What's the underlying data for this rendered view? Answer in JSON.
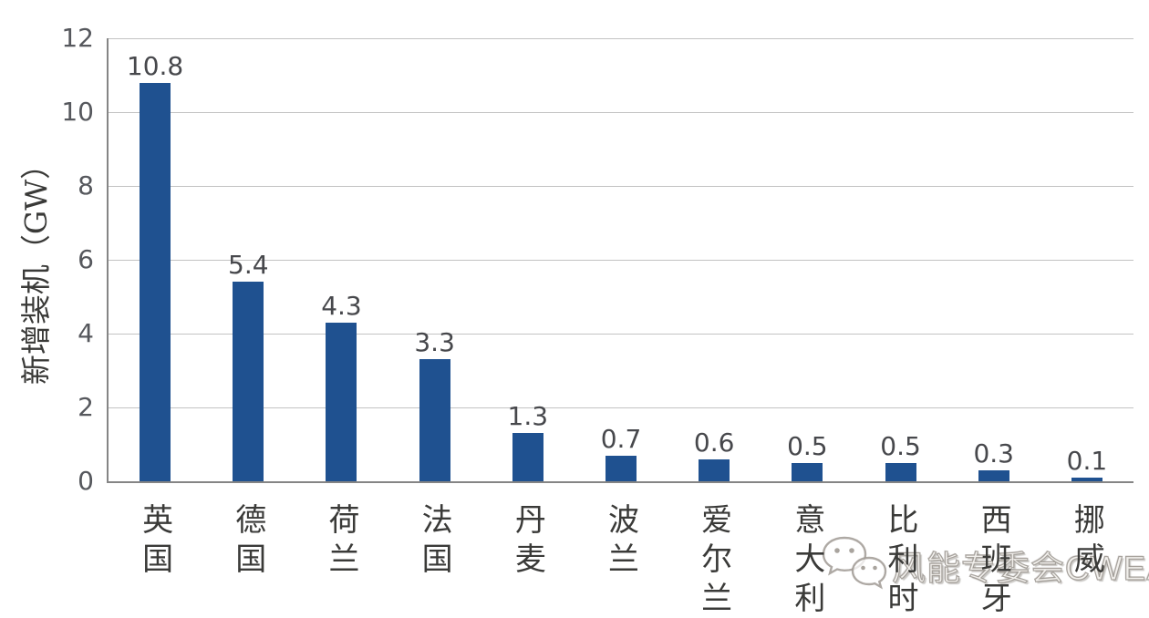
{
  "chart_data": {
    "type": "bar",
    "categories": [
      "英国",
      "德国",
      "荷兰",
      "法国",
      "丹麦",
      "波兰",
      "爱尔兰",
      "意大利",
      "比利时",
      "西班牙",
      "挪威"
    ],
    "values": [
      10.8,
      5.4,
      4.3,
      3.3,
      1.3,
      0.7,
      0.6,
      0.5,
      0.5,
      0.3,
      0.1
    ],
    "value_labels": [
      "10.8",
      "5.4",
      "4.3",
      "3.3",
      "1.3",
      "0.7",
      "0.6",
      "0.5",
      "0.5",
      "0.3",
      "0.1"
    ],
    "title": "",
    "xlabel": "",
    "ylabel": "新增装机（GW）",
    "ylim": [
      0,
      12
    ],
    "yticks": [
      0,
      2,
      4,
      6,
      8,
      10,
      12
    ],
    "grid": true,
    "legend_position": "none",
    "bar_color": "#1f5190",
    "gridline_color": "#c3c3c3",
    "axis_color": "#858585"
  },
  "watermark": {
    "icon": "wechat-icon",
    "text": "风能专委会CWEA"
  }
}
